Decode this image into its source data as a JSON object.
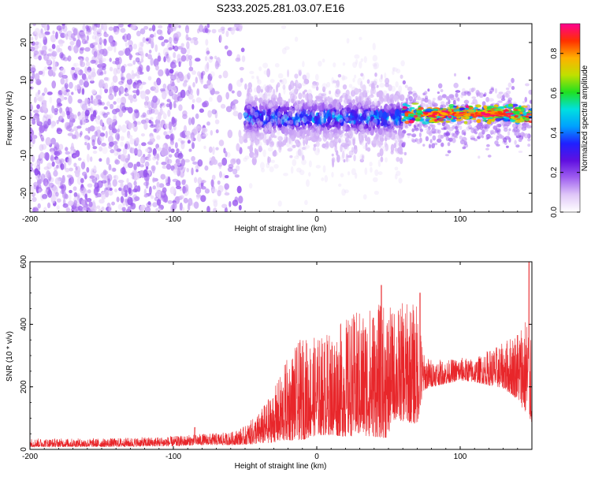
{
  "figure": {
    "title": "S233.2025.281.03.07.E16"
  },
  "chart_data": [
    {
      "type": "heatmap",
      "title": "S233.2025.281.03.07.E16",
      "xlabel": "Height of straight line (km)",
      "ylabel": "Frequency (Hz)",
      "xlim": [
        -200,
        150
      ],
      "ylim": [
        -25,
        25
      ],
      "xticks": [
        -200,
        -100,
        0,
        100
      ],
      "xtick_labels": [
        "-200",
        "-100",
        "0",
        "100"
      ],
      "yticks": [
        -20,
        -10,
        0,
        10,
        20
      ],
      "ytick_labels": [
        "-20",
        "-10",
        "0",
        "10",
        "20"
      ],
      "colorbar": {
        "label": "Normalized spectral amplitude",
        "range": [
          0,
          0.95
        ],
        "ticks": [
          0.0,
          0.2,
          0.4,
          0.6,
          0.8
        ],
        "tick_labels": [
          "0.0",
          "0.2",
          "0.4",
          "0.6",
          "0.8"
        ],
        "colormap": [
          "#ffffff",
          "#e0c8f8",
          "#a060f0",
          "#6010e0",
          "#2020ff",
          "#00a0ff",
          "#00e0e0",
          "#20e020",
          "#c0e000",
          "#ffb000",
          "#ff3000",
          "#ff0090"
        ]
      },
      "regions": [
        {
          "name": "scattered noise",
          "x_range": [
            -200,
            -50
          ],
          "freq_range": [
            -25,
            25
          ],
          "amplitude": [
            0.05,
            0.2
          ]
        },
        {
          "name": "emerging signal",
          "x_range": [
            -50,
            60
          ],
          "freq_range": [
            -12,
            12
          ],
          "amplitude": [
            0.1,
            0.45
          ]
        },
        {
          "name": "stable tone",
          "x_range": [
            60,
            150
          ],
          "freq_center": 1,
          "freq_width": 2,
          "amplitude": [
            0.5,
            0.95
          ]
        }
      ]
    },
    {
      "type": "line",
      "xlabel": "Height of straight line (km)",
      "ylabel": "SNR (10 * v/v)",
      "xlim": [
        -200,
        150
      ],
      "ylim": [
        0,
        600
      ],
      "xticks": [
        -200,
        -100,
        0,
        100
      ],
      "xtick_labels": [
        "-200",
        "-100",
        "0",
        "100"
      ],
      "yticks": [
        0,
        200,
        400,
        600
      ],
      "ytick_labels": [
        "0",
        "200",
        "400",
        "600"
      ],
      "series": [
        {
          "name": "SNR",
          "color": "#e8262a",
          "envelope_x": [
            -200,
            -150,
            -100,
            -80,
            -60,
            -50,
            -40,
            -30,
            -20,
            -10,
            0,
            10,
            20,
            30,
            40,
            50,
            52,
            60,
            70,
            75,
            80,
            90,
            100,
            110,
            120,
            130,
            140,
            145,
            150
          ],
          "envelope_low": [
            8,
            8,
            10,
            14,
            14,
            15,
            18,
            22,
            28,
            30,
            45,
            45,
            40,
            45,
            40,
            35,
            95,
            90,
            80,
            190,
            200,
            210,
            220,
            215,
            205,
            195,
            160,
            120,
            80
          ],
          "envelope_high": [
            35,
            35,
            42,
            50,
            55,
            75,
            120,
            190,
            300,
            360,
            360,
            380,
            420,
            450,
            470,
            460,
            450,
            470,
            470,
            300,
            290,
            285,
            295,
            290,
            320,
            340,
            390,
            430,
            460
          ],
          "peaks": [
            {
              "x": 45,
              "y": 525
            },
            {
              "x": 72,
              "y": 500
            },
            {
              "x": -85,
              "y": 70
            },
            {
              "x": 148,
              "y": 600
            }
          ]
        }
      ]
    }
  ]
}
